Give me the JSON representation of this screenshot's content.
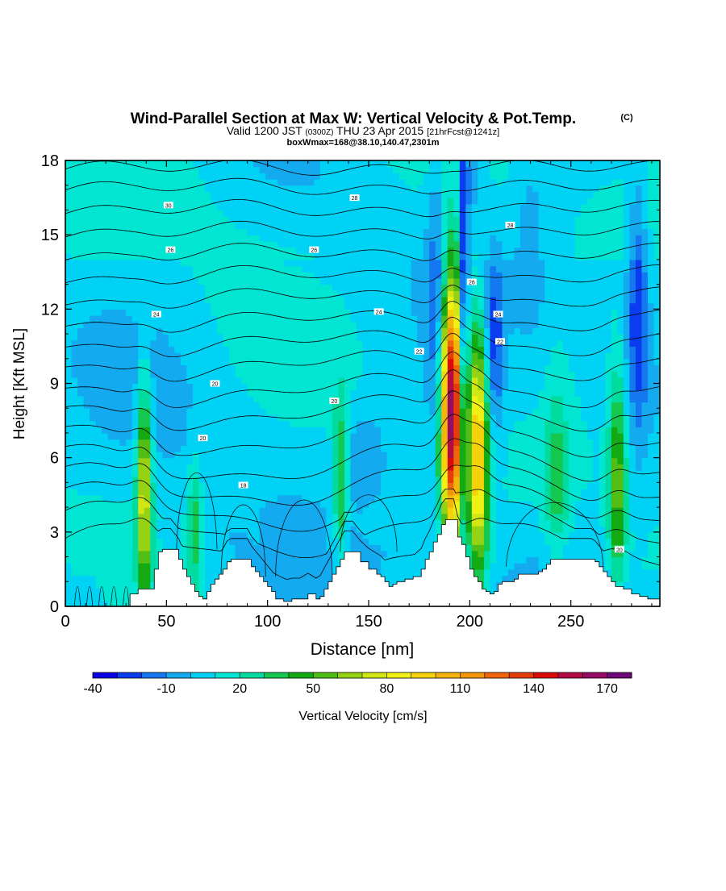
{
  "title": {
    "line1": "Wind-Parallel Section at Max W: Vertical Velocity & Pot.Temp.",
    "copyright": "(C)",
    "line2_main": "Valid 1200 JST",
    "line2_utc": "(0300Z)",
    "line2_date": "THU 23 Apr 2015",
    "line2_fcst": "[21hrFcst@1241z]",
    "line3": "boxWmax=168@38.10,140.47,2301m"
  },
  "chart_data": {
    "type": "heatmap",
    "xlabel": "Distance [nm]",
    "ylabel": "Height [Kft MSL]",
    "xlim": [
      0,
      294
    ],
    "ylim": [
      0,
      18
    ],
    "x_ticks": [
      0,
      50,
      100,
      150,
      200,
      250
    ],
    "y_ticks": [
      0,
      3,
      6,
      9,
      12,
      15,
      18
    ],
    "colorbar": {
      "label": "Vertical Velocity [cm/s]",
      "tick_labels": [
        "-40",
        "-10",
        "20",
        "50",
        "80",
        "110",
        "140",
        "170"
      ],
      "tick_values": [
        -40,
        -10,
        20,
        50,
        80,
        110,
        140,
        170
      ],
      "levels": [
        -40,
        -30,
        -20,
        -10,
        0,
        10,
        20,
        30,
        40,
        50,
        60,
        70,
        80,
        90,
        100,
        110,
        120,
        130,
        140,
        150,
        160,
        170,
        180
      ],
      "colors": [
        "#0a00e6",
        "#0a3cf0",
        "#1478f0",
        "#14aaf0",
        "#00d2f5",
        "#00e6d2",
        "#00dca0",
        "#14c850",
        "#14aa14",
        "#50be14",
        "#96d214",
        "#d2e614",
        "#f0f014",
        "#f5d20a",
        "#f5b40a",
        "#f5960a",
        "#f0640a",
        "#e63c0a",
        "#dc0a0a",
        "#b40a46",
        "#960a64",
        "#6e0a78"
      ]
    },
    "terrain": [
      [
        0,
        0
      ],
      [
        4,
        0
      ],
      [
        8,
        0
      ],
      [
        12,
        0
      ],
      [
        16,
        0
      ],
      [
        20,
        0
      ],
      [
        24,
        0
      ],
      [
        28,
        0
      ],
      [
        32,
        0.5
      ],
      [
        36,
        0.7
      ],
      [
        40,
        0.7
      ],
      [
        42,
        0.7
      ],
      [
        44,
        1.5
      ],
      [
        46,
        2.2
      ],
      [
        48,
        2.3
      ],
      [
        52,
        2.3
      ],
      [
        56,
        1.9
      ],
      [
        58,
        1.5
      ],
      [
        60,
        1.2
      ],
      [
        62,
        0.9
      ],
      [
        64,
        0.6
      ],
      [
        66,
        0.4
      ],
      [
        68,
        0.3
      ],
      [
        70,
        0.6
      ],
      [
        72,
        0.9
      ],
      [
        74,
        1.1
      ],
      [
        76,
        1.3
      ],
      [
        78,
        1.5
      ],
      [
        80,
        1.8
      ],
      [
        82,
        1.9
      ],
      [
        86,
        1.9
      ],
      [
        90,
        1.9
      ],
      [
        92,
        1.6
      ],
      [
        94,
        1.4
      ],
      [
        96,
        1.2
      ],
      [
        98,
        1.0
      ],
      [
        100,
        0.8
      ],
      [
        102,
        0.6
      ],
      [
        104,
        0.3
      ],
      [
        106,
        0.3
      ],
      [
        108,
        0.2
      ],
      [
        112,
        0.3
      ],
      [
        116,
        0.3
      ],
      [
        120,
        0.5
      ],
      [
        124,
        0.3
      ],
      [
        126,
        0.4
      ],
      [
        128,
        0.7
      ],
      [
        130,
        1.0
      ],
      [
        132,
        1.3
      ],
      [
        134,
        1.6
      ],
      [
        136,
        1.9
      ],
      [
        138,
        2.2
      ],
      [
        142,
        2.2
      ],
      [
        146,
        1.8
      ],
      [
        150,
        1.5
      ],
      [
        154,
        1.3
      ],
      [
        156,
        1.2
      ],
      [
        158,
        1.0
      ],
      [
        160,
        0.8
      ],
      [
        162,
        0.9
      ],
      [
        164,
        1.0
      ],
      [
        168,
        1.1
      ],
      [
        172,
        1.2
      ],
      [
        176,
        1.5
      ],
      [
        178,
        1.9
      ],
      [
        180,
        2.2
      ],
      [
        182,
        2.6
      ],
      [
        184,
        2.9
      ],
      [
        186,
        3.3
      ],
      [
        188,
        3.5
      ],
      [
        192,
        3.5
      ],
      [
        194,
        2.8
      ],
      [
        196,
        2.5
      ],
      [
        198,
        2.0
      ],
      [
        200,
        1.5
      ],
      [
        202,
        1.2
      ],
      [
        204,
        1.0
      ],
      [
        206,
        0.7
      ],
      [
        208,
        0.6
      ],
      [
        210,
        0.5
      ],
      [
        212,
        0.6
      ],
      [
        214,
        0.9
      ],
      [
        216,
        1.0
      ],
      [
        220,
        1.0
      ],
      [
        222,
        1.1
      ],
      [
        224,
        1.3
      ],
      [
        228,
        1.3
      ],
      [
        232,
        1.3
      ],
      [
        234,
        1.4
      ],
      [
        236,
        1.5
      ],
      [
        238,
        1.7
      ],
      [
        240,
        1.9
      ],
      [
        244,
        1.9
      ],
      [
        248,
        1.9
      ],
      [
        252,
        1.9
      ],
      [
        256,
        1.9
      ],
      [
        260,
        1.9
      ],
      [
        262,
        1.8
      ],
      [
        264,
        1.6
      ],
      [
        266,
        1.4
      ],
      [
        268,
        1.2
      ],
      [
        270,
        1.0
      ],
      [
        272,
        0.8
      ],
      [
        276,
        0.7
      ],
      [
        280,
        0.5
      ],
      [
        284,
        0.4
      ],
      [
        288,
        0.3
      ],
      [
        292,
        0.3
      ],
      [
        294,
        0.3
      ]
    ],
    "theta_isentropes": [
      {
        "base": 2.1,
        "amp": 1.0
      },
      {
        "base": 3.1,
        "amp": 0.9
      },
      {
        "base": 4.0,
        "amp": 0.8
      },
      {
        "base": 4.9,
        "amp": 0.75
      },
      {
        "base": 5.8,
        "amp": 0.7
      },
      {
        "base": 6.8,
        "amp": 0.6
      },
      {
        "base": 7.8,
        "amp": 0.5
      },
      {
        "base": 8.7,
        "amp": 0.45
      },
      {
        "base": 9.7,
        "amp": 0.4
      },
      {
        "base": 10.6,
        "amp": 0.35
      },
      {
        "base": 11.5,
        "amp": 0.3
      },
      {
        "base": 12.4,
        "amp": 0.28
      },
      {
        "base": 13.3,
        "amp": 0.25
      },
      {
        "base": 14.2,
        "amp": 0.22
      },
      {
        "base": 15.1,
        "amp": 0.2
      },
      {
        "base": 16.0,
        "amp": 0.18
      },
      {
        "base": 16.9,
        "amp": 0.15
      },
      {
        "base": 17.7,
        "amp": 0.12
      }
    ],
    "updraft_cores": [
      {
        "x": 39,
        "xw": 2.5,
        "y": 4.8,
        "yw": 3.0,
        "amp": 75
      },
      {
        "x": 191,
        "xw": 3.8,
        "y": 8.0,
        "yw": 3.9,
        "amp": 165
      },
      {
        "x": 204,
        "xw": 3.5,
        "y": 6.3,
        "yw": 3.6,
        "amp": 98
      },
      {
        "x": 273,
        "xw": 3.0,
        "y": 5.0,
        "yw": 3.0,
        "amp": 50
      },
      {
        "x": 136,
        "xw": 2.5,
        "y": 5.0,
        "yw": 2.3,
        "amp": 40
      },
      {
        "x": 64,
        "xw": 2.5,
        "y": 3.3,
        "yw": 2.0,
        "amp": 30
      },
      {
        "x": 243,
        "xw": 4.0,
        "y": 5.0,
        "yw": 2.8,
        "amp": 25
      }
    ],
    "downdraft_cores": [
      {
        "x": 184,
        "xw": 3.5,
        "y": 12.0,
        "yw": 4.5,
        "amp": 25
      },
      {
        "x": 197,
        "xw": 1.5,
        "y": 12.0,
        "yw": 5.5,
        "amp": 45
      },
      {
        "x": 212,
        "xw": 3.5,
        "y": 10.5,
        "yw": 2.5,
        "amp": 30
      },
      {
        "x": 283,
        "xw": 3.5,
        "y": 12.0,
        "yw": 3.5,
        "amp": 35
      },
      {
        "x": 148,
        "xw": 7.0,
        "y": 6.2,
        "yw": 1.2,
        "amp": 16
      },
      {
        "x": 200,
        "xw": 5.0,
        "y": 17.5,
        "yw": 1.5,
        "amp": 20
      },
      {
        "x": 230,
        "xw": 6.0,
        "y": 15.0,
        "yw": 3.0,
        "amp": 12
      }
    ],
    "contour_labels": [
      {
        "text": "30",
        "x": 51,
        "y": 16.2
      },
      {
        "text": "28",
        "x": 143,
        "y": 16.5
      },
      {
        "text": "28",
        "x": 220,
        "y": 15.4
      },
      {
        "text": "26",
        "x": 52,
        "y": 14.4
      },
      {
        "text": "26",
        "x": 123,
        "y": 14.4
      },
      {
        "text": "26",
        "x": 201,
        "y": 13.1
      },
      {
        "text": "24",
        "x": 45,
        "y": 11.8
      },
      {
        "text": "24",
        "x": 155,
        "y": 11.9
      },
      {
        "text": "24",
        "x": 214,
        "y": 11.8
      },
      {
        "text": "22",
        "x": 175,
        "y": 10.3
      },
      {
        "text": "22",
        "x": 215,
        "y": 10.7
      },
      {
        "text": "20",
        "x": 74,
        "y": 9.0
      },
      {
        "text": "20",
        "x": 133,
        "y": 8.3
      },
      {
        "text": "20",
        "x": 68,
        "y": 6.8
      },
      {
        "text": "18",
        "x": 88,
        "y": 4.9
      },
      {
        "text": "20",
        "x": 274,
        "y": 2.3
      }
    ]
  }
}
